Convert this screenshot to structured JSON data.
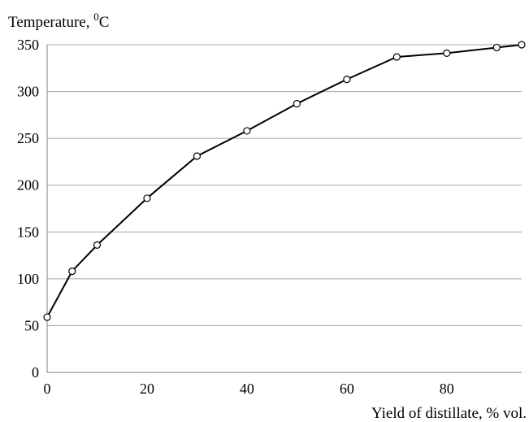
{
  "chart_data": {
    "type": "line",
    "title": "",
    "ylabel": "Temperature, ",
    "ylabel_unit_sup": "0",
    "ylabel_unit": "C",
    "xlabel": "Yield of distillate,  % vol.",
    "x": [
      0,
      5,
      10,
      20,
      30,
      40,
      50,
      60,
      70,
      80,
      90,
      95
    ],
    "y": [
      59,
      108,
      136,
      186,
      231,
      258,
      287,
      313,
      337,
      341,
      347,
      350
    ],
    "xlim": [
      0,
      95
    ],
    "ylim": [
      0,
      350
    ],
    "xticks": [
      0,
      20,
      40,
      60,
      80
    ],
    "yticks": [
      0,
      50,
      100,
      150,
      200,
      250,
      300,
      350
    ],
    "grid": "horizontal",
    "marker": "open-circle",
    "line_color": "#000000",
    "grid_color": "#a6a6a6"
  }
}
